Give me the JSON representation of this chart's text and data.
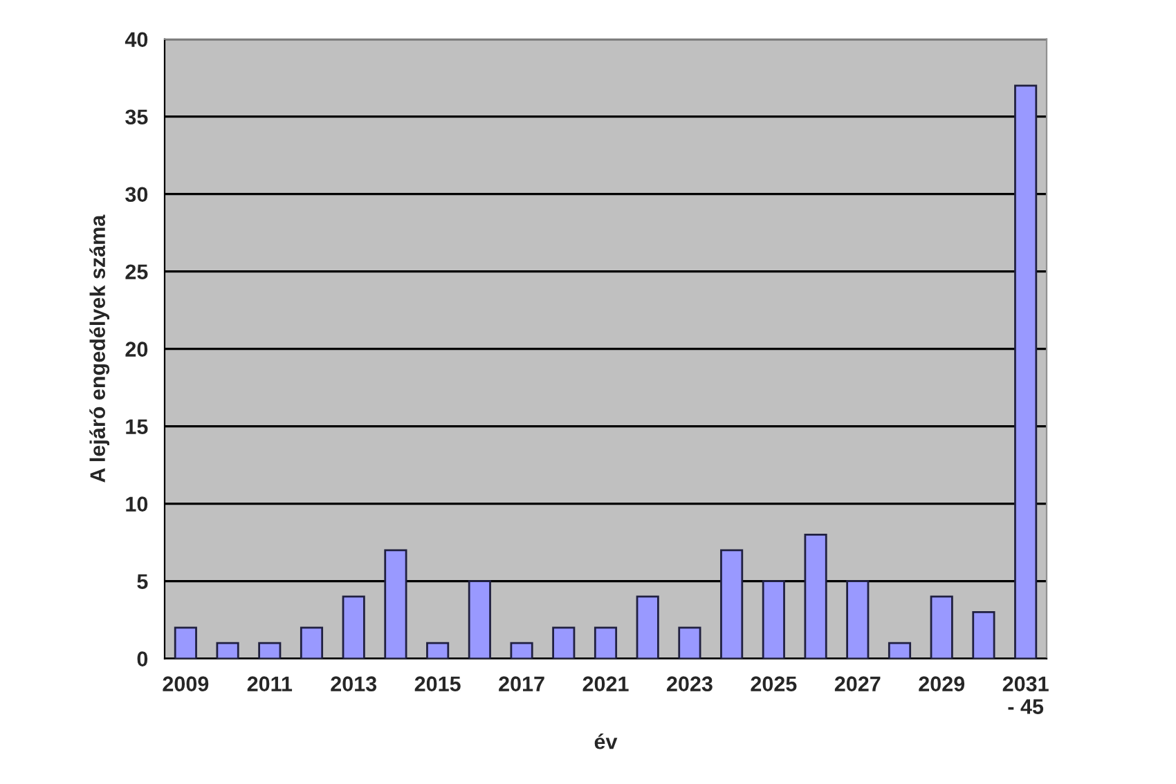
{
  "chart_data": {
    "type": "bar",
    "xlabel": "év",
    "ylabel": "A lejáró engedélyek száma",
    "categories": [
      "2009",
      null,
      "2011",
      null,
      "2013",
      null,
      "2015",
      null,
      "2017",
      null,
      "2021",
      null,
      "2023",
      null,
      "2025",
      null,
      "2027",
      null,
      "2029",
      null,
      "2031\n- 45"
    ],
    "values": [
      2,
      1,
      1,
      2,
      4,
      7,
      1,
      5,
      1,
      2,
      2,
      4,
      2,
      7,
      5,
      8,
      5,
      1,
      4,
      3,
      37
    ],
    "color": "#9999ff",
    "ylim": [
      0,
      40
    ],
    "yticks": [
      0,
      5,
      10,
      15,
      20,
      25,
      30,
      35,
      40
    ],
    "grid": "y",
    "legend": false
  }
}
